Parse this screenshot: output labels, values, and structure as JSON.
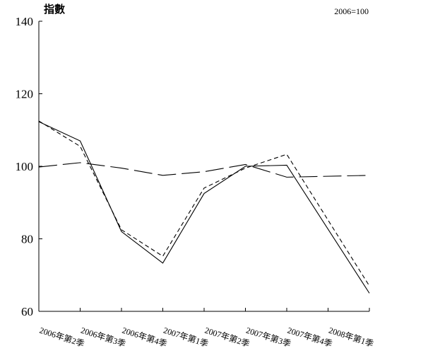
{
  "chart_data": {
    "type": "line",
    "ylabel": "指數",
    "note": "2006=100",
    "categories": [
      "2006年第2季",
      "2006年第3季",
      "2006年第4季",
      "2007年第1季",
      "2007年第2季",
      "2007年第3季",
      "2007年第4季",
      "2008年第1季"
    ],
    "ylim": [
      60,
      140
    ],
    "yticks": [
      60,
      80,
      100,
      120,
      140
    ],
    "grid": false,
    "legend": "none",
    "series": [
      {
        "values": [
          112.3,
          107.0,
          82.0,
          73.3,
          92.5,
          100.0,
          100.3,
          65.0
        ],
        "dash": "",
        "color": "#000000"
      },
      {
        "values": [
          112.5,
          105.5,
          82.5,
          75.2,
          94.0,
          99.5,
          103.3,
          67.0
        ],
        "dash": "6,4",
        "color": "#000000"
      },
      {
        "values": [
          99.8,
          101.0,
          99.5,
          97.5,
          98.5,
          100.5,
          97.0,
          97.5
        ],
        "dash": "26,8",
        "color": "#000000"
      }
    ]
  }
}
